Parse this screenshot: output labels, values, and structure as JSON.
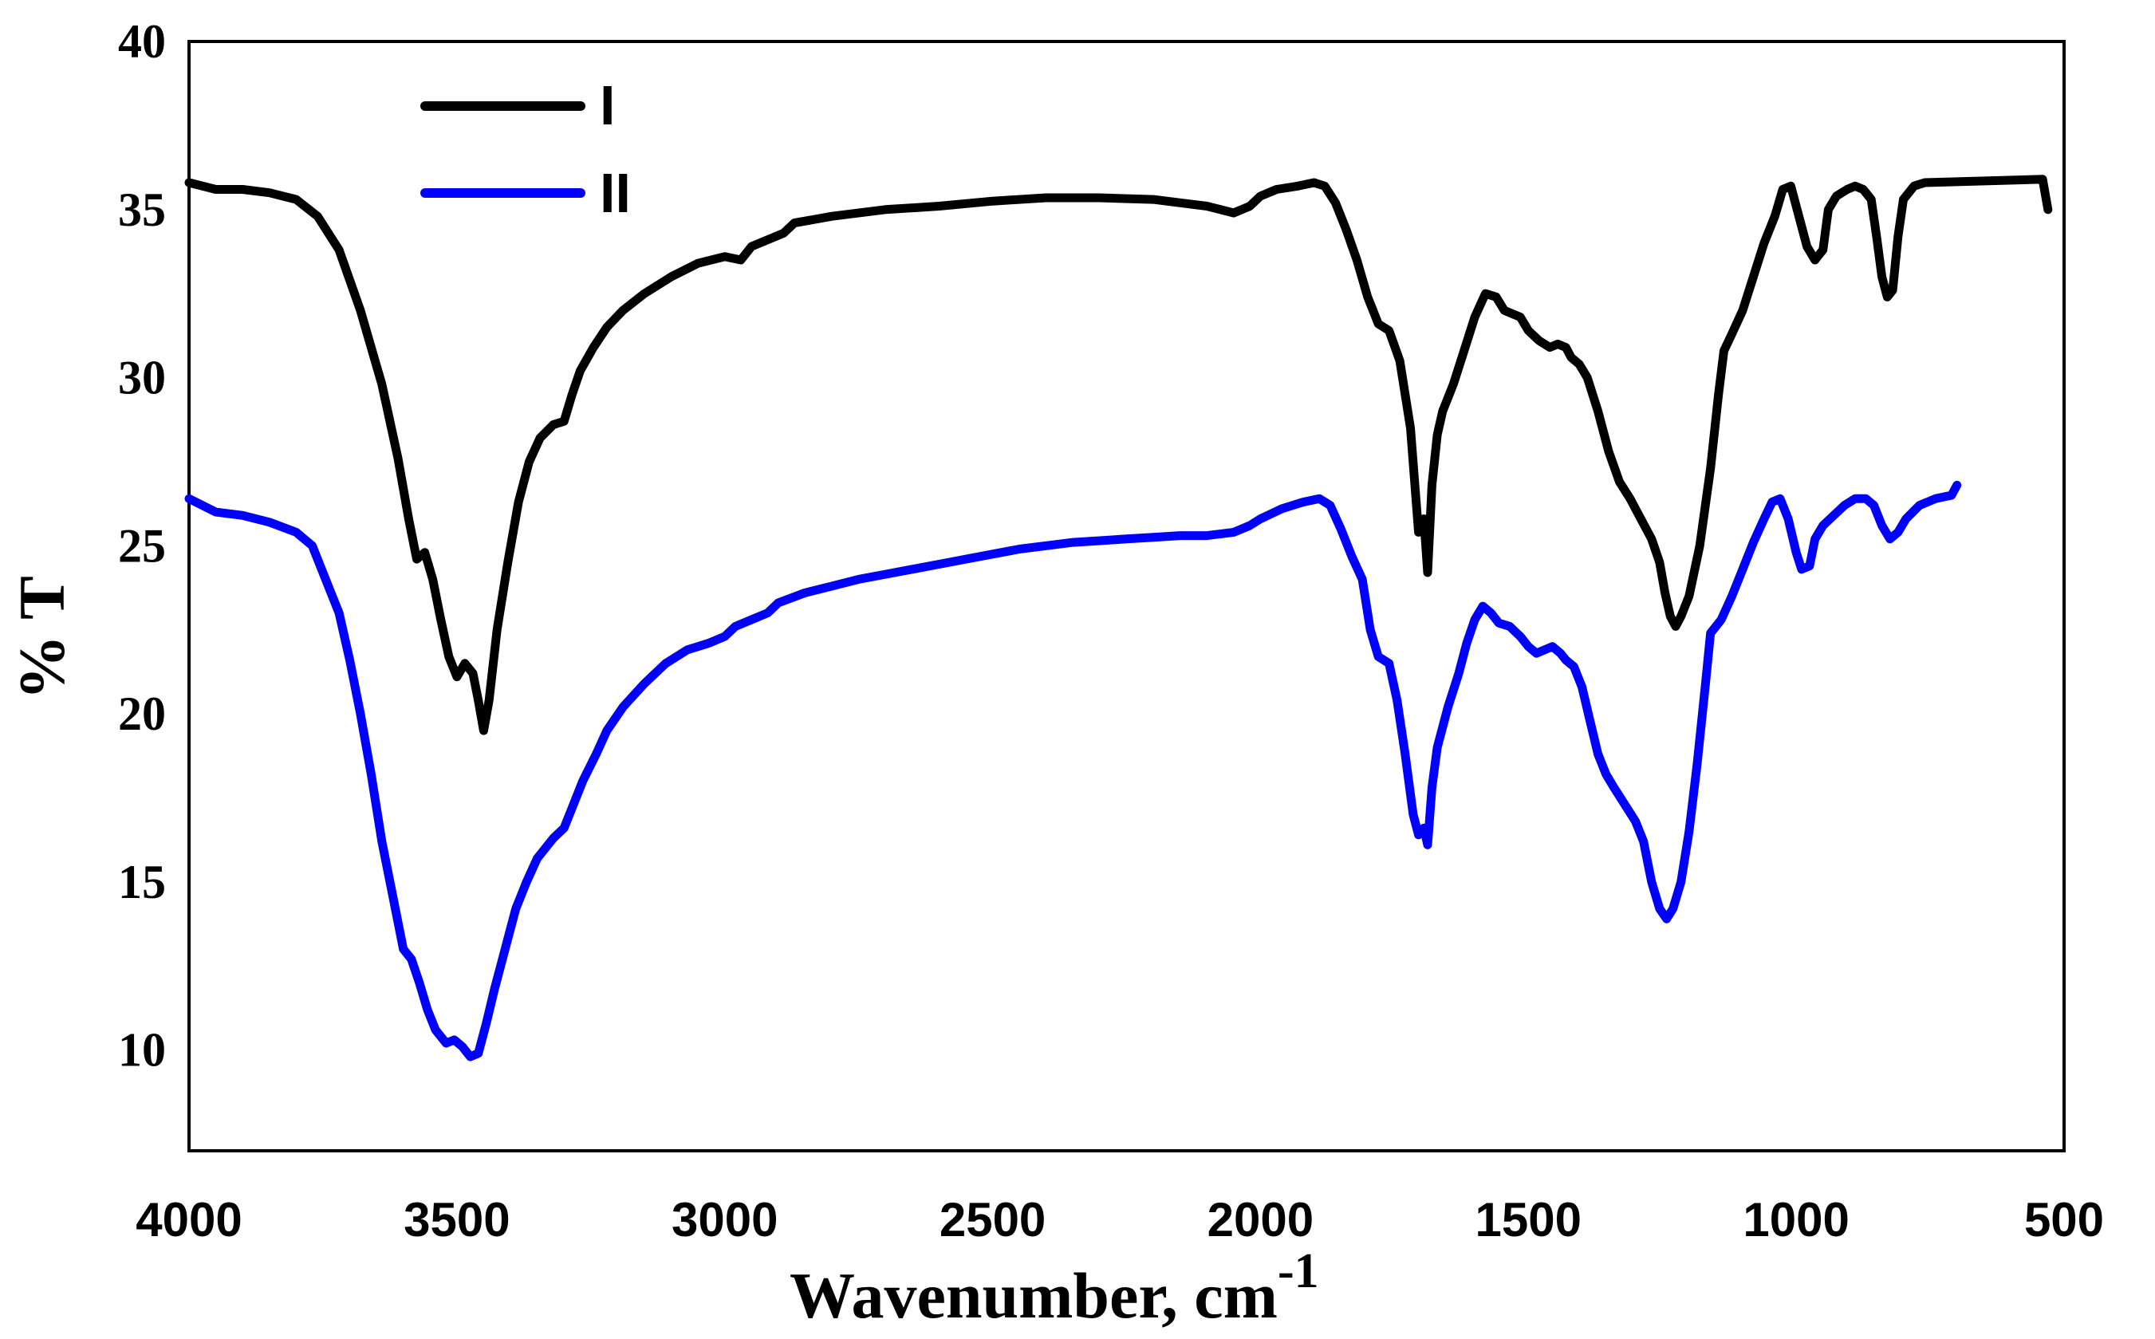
{
  "chart_data": {
    "type": "line",
    "xlabel": "Wavenumber, cm",
    "xlabel_superscript": "-1",
    "ylabel": "% T",
    "xlim": [
      4000,
      500
    ],
    "ylim": [
      7,
      40
    ],
    "x_reversed": true,
    "grid": false,
    "legend_position": "top-left",
    "x_ticks": [
      4000,
      3500,
      3000,
      2500,
      2000,
      1500,
      1000,
      500
    ],
    "y_ticks": [
      10,
      15,
      20,
      25,
      30,
      35,
      40
    ],
    "series": [
      {
        "name": "I",
        "color": "#000000",
        "points": [
          [
            4000,
            35.8
          ],
          [
            3950,
            35.6
          ],
          [
            3900,
            35.6
          ],
          [
            3850,
            35.5
          ],
          [
            3800,
            35.3
          ],
          [
            3760,
            34.8
          ],
          [
            3720,
            33.8
          ],
          [
            3680,
            32.0
          ],
          [
            3640,
            29.8
          ],
          [
            3610,
            27.6
          ],
          [
            3590,
            25.8
          ],
          [
            3575,
            24.6
          ],
          [
            3560,
            24.8
          ],
          [
            3545,
            24.0
          ],
          [
            3530,
            22.8
          ],
          [
            3515,
            21.7
          ],
          [
            3500,
            21.1
          ],
          [
            3485,
            21.5
          ],
          [
            3470,
            21.2
          ],
          [
            3460,
            20.4
          ],
          [
            3450,
            19.5
          ],
          [
            3440,
            20.4
          ],
          [
            3425,
            22.5
          ],
          [
            3405,
            24.5
          ],
          [
            3385,
            26.3
          ],
          [
            3365,
            27.5
          ],
          [
            3345,
            28.2
          ],
          [
            3320,
            28.6
          ],
          [
            3300,
            28.7
          ],
          [
            3285,
            29.5
          ],
          [
            3270,
            30.2
          ],
          [
            3245,
            30.9
          ],
          [
            3220,
            31.5
          ],
          [
            3190,
            32.0
          ],
          [
            3150,
            32.5
          ],
          [
            3100,
            33.0
          ],
          [
            3050,
            33.4
          ],
          [
            3000,
            33.6
          ],
          [
            2970,
            33.5
          ],
          [
            2950,
            33.9
          ],
          [
            2920,
            34.1
          ],
          [
            2890,
            34.3
          ],
          [
            2870,
            34.6
          ],
          [
            2800,
            34.8
          ],
          [
            2700,
            35.0
          ],
          [
            2600,
            35.1
          ],
          [
            2500,
            35.25
          ],
          [
            2400,
            35.35
          ],
          [
            2300,
            35.35
          ],
          [
            2200,
            35.3
          ],
          [
            2150,
            35.2
          ],
          [
            2100,
            35.1
          ],
          [
            2050,
            34.9
          ],
          [
            2020,
            35.1
          ],
          [
            2000,
            35.4
          ],
          [
            1970,
            35.6
          ],
          [
            1930,
            35.7
          ],
          [
            1900,
            35.8
          ],
          [
            1880,
            35.7
          ],
          [
            1860,
            35.2
          ],
          [
            1840,
            34.4
          ],
          [
            1820,
            33.5
          ],
          [
            1800,
            32.4
          ],
          [
            1780,
            31.6
          ],
          [
            1760,
            31.4
          ],
          [
            1740,
            30.5
          ],
          [
            1720,
            28.5
          ],
          [
            1705,
            25.4
          ],
          [
            1695,
            25.8
          ],
          [
            1688,
            24.2
          ],
          [
            1680,
            26.8
          ],
          [
            1670,
            28.3
          ],
          [
            1660,
            29.0
          ],
          [
            1640,
            29.8
          ],
          [
            1620,
            30.8
          ],
          [
            1600,
            31.8
          ],
          [
            1580,
            32.5
          ],
          [
            1560,
            32.4
          ],
          [
            1545,
            32.0
          ],
          [
            1530,
            31.9
          ],
          [
            1515,
            31.8
          ],
          [
            1500,
            31.4
          ],
          [
            1480,
            31.1
          ],
          [
            1460,
            30.9
          ],
          [
            1445,
            31.0
          ],
          [
            1430,
            30.9
          ],
          [
            1420,
            30.6
          ],
          [
            1405,
            30.4
          ],
          [
            1390,
            30.0
          ],
          [
            1370,
            29.0
          ],
          [
            1350,
            27.8
          ],
          [
            1330,
            26.9
          ],
          [
            1310,
            26.4
          ],
          [
            1290,
            25.8
          ],
          [
            1270,
            25.2
          ],
          [
            1255,
            24.5
          ],
          [
            1245,
            23.6
          ],
          [
            1235,
            22.9
          ],
          [
            1225,
            22.6
          ],
          [
            1215,
            22.9
          ],
          [
            1200,
            23.5
          ],
          [
            1180,
            25.0
          ],
          [
            1160,
            27.3
          ],
          [
            1145,
            29.5
          ],
          [
            1135,
            30.8
          ],
          [
            1120,
            31.3
          ],
          [
            1100,
            32.0
          ],
          [
            1080,
            33.0
          ],
          [
            1060,
            34.0
          ],
          [
            1040,
            34.8
          ],
          [
            1025,
            35.6
          ],
          [
            1010,
            35.7
          ],
          [
            995,
            34.8
          ],
          [
            980,
            33.9
          ],
          [
            965,
            33.5
          ],
          [
            950,
            33.8
          ],
          [
            940,
            35.0
          ],
          [
            925,
            35.4
          ],
          [
            905,
            35.6
          ],
          [
            890,
            35.7
          ],
          [
            875,
            35.6
          ],
          [
            860,
            35.3
          ],
          [
            850,
            34.2
          ],
          [
            840,
            33.0
          ],
          [
            830,
            32.4
          ],
          [
            820,
            32.6
          ],
          [
            810,
            34.2
          ],
          [
            800,
            35.3
          ],
          [
            780,
            35.7
          ],
          [
            760,
            35.8
          ],
          [
            540,
            35.9
          ],
          [
            530,
            35.0
          ]
        ]
      },
      {
        "name": "II",
        "color": "#0000ff",
        "points": [
          [
            4000,
            26.4
          ],
          [
            3950,
            26.0
          ],
          [
            3900,
            25.9
          ],
          [
            3850,
            25.7
          ],
          [
            3800,
            25.4
          ],
          [
            3770,
            25.0
          ],
          [
            3740,
            23.8
          ],
          [
            3720,
            23.0
          ],
          [
            3700,
            21.6
          ],
          [
            3680,
            20.0
          ],
          [
            3660,
            18.2
          ],
          [
            3640,
            16.2
          ],
          [
            3620,
            14.6
          ],
          [
            3600,
            13.0
          ],
          [
            3585,
            12.7
          ],
          [
            3570,
            12.0
          ],
          [
            3555,
            11.2
          ],
          [
            3540,
            10.6
          ],
          [
            3520,
            10.2
          ],
          [
            3505,
            10.3
          ],
          [
            3490,
            10.1
          ],
          [
            3475,
            9.8
          ],
          [
            3460,
            9.9
          ],
          [
            3445,
            10.8
          ],
          [
            3430,
            11.8
          ],
          [
            3410,
            13.0
          ],
          [
            3390,
            14.2
          ],
          [
            3370,
            15.0
          ],
          [
            3350,
            15.7
          ],
          [
            3320,
            16.3
          ],
          [
            3300,
            16.6
          ],
          [
            3285,
            17.2
          ],
          [
            3265,
            18.0
          ],
          [
            3240,
            18.8
          ],
          [
            3220,
            19.5
          ],
          [
            3190,
            20.2
          ],
          [
            3150,
            20.9
          ],
          [
            3110,
            21.5
          ],
          [
            3070,
            21.9
          ],
          [
            3030,
            22.1
          ],
          [
            3000,
            22.3
          ],
          [
            2980,
            22.6
          ],
          [
            2950,
            22.8
          ],
          [
            2920,
            23.0
          ],
          [
            2900,
            23.3
          ],
          [
            2850,
            23.6
          ],
          [
            2800,
            23.8
          ],
          [
            2750,
            24.0
          ],
          [
            2700,
            24.15
          ],
          [
            2650,
            24.3
          ],
          [
            2600,
            24.45
          ],
          [
            2550,
            24.6
          ],
          [
            2500,
            24.75
          ],
          [
            2450,
            24.9
          ],
          [
            2400,
            25.0
          ],
          [
            2350,
            25.1
          ],
          [
            2300,
            25.15
          ],
          [
            2250,
            25.2
          ],
          [
            2200,
            25.25
          ],
          [
            2150,
            25.3
          ],
          [
            2100,
            25.3
          ],
          [
            2050,
            25.4
          ],
          [
            2020,
            25.6
          ],
          [
            2000,
            25.8
          ],
          [
            1960,
            26.1
          ],
          [
            1920,
            26.3
          ],
          [
            1890,
            26.4
          ],
          [
            1870,
            26.2
          ],
          [
            1850,
            25.5
          ],
          [
            1830,
            24.7
          ],
          [
            1810,
            24.0
          ],
          [
            1795,
            22.5
          ],
          [
            1780,
            21.7
          ],
          [
            1760,
            21.5
          ],
          [
            1745,
            20.4
          ],
          [
            1730,
            18.8
          ],
          [
            1715,
            17.0
          ],
          [
            1705,
            16.4
          ],
          [
            1695,
            16.6
          ],
          [
            1688,
            16.1
          ],
          [
            1680,
            17.8
          ],
          [
            1670,
            19.0
          ],
          [
            1650,
            20.2
          ],
          [
            1630,
            21.2
          ],
          [
            1615,
            22.1
          ],
          [
            1600,
            22.8
          ],
          [
            1585,
            23.2
          ],
          [
            1570,
            23.0
          ],
          [
            1555,
            22.7
          ],
          [
            1535,
            22.6
          ],
          [
            1515,
            22.3
          ],
          [
            1500,
            22.0
          ],
          [
            1485,
            21.8
          ],
          [
            1470,
            21.9
          ],
          [
            1455,
            22.0
          ],
          [
            1440,
            21.8
          ],
          [
            1430,
            21.6
          ],
          [
            1415,
            21.4
          ],
          [
            1400,
            20.8
          ],
          [
            1385,
            19.8
          ],
          [
            1370,
            18.8
          ],
          [
            1355,
            18.2
          ],
          [
            1340,
            17.8
          ],
          [
            1320,
            17.3
          ],
          [
            1300,
            16.8
          ],
          [
            1285,
            16.2
          ],
          [
            1270,
            15.0
          ],
          [
            1255,
            14.2
          ],
          [
            1242,
            13.9
          ],
          [
            1230,
            14.2
          ],
          [
            1215,
            15.0
          ],
          [
            1200,
            16.5
          ],
          [
            1185,
            18.5
          ],
          [
            1170,
            20.8
          ],
          [
            1160,
            22.4
          ],
          [
            1140,
            22.8
          ],
          [
            1120,
            23.5
          ],
          [
            1100,
            24.3
          ],
          [
            1080,
            25.1
          ],
          [
            1060,
            25.8
          ],
          [
            1045,
            26.3
          ],
          [
            1030,
            26.4
          ],
          [
            1015,
            25.8
          ],
          [
            1000,
            24.8
          ],
          [
            990,
            24.3
          ],
          [
            975,
            24.4
          ],
          [
            965,
            25.2
          ],
          [
            950,
            25.6
          ],
          [
            930,
            25.9
          ],
          [
            910,
            26.2
          ],
          [
            890,
            26.4
          ],
          [
            870,
            26.4
          ],
          [
            855,
            26.2
          ],
          [
            840,
            25.6
          ],
          [
            825,
            25.2
          ],
          [
            810,
            25.4
          ],
          [
            795,
            25.8
          ],
          [
            770,
            26.2
          ],
          [
            740,
            26.4
          ],
          [
            710,
            26.5
          ],
          [
            700,
            26.8
          ]
        ]
      }
    ]
  }
}
